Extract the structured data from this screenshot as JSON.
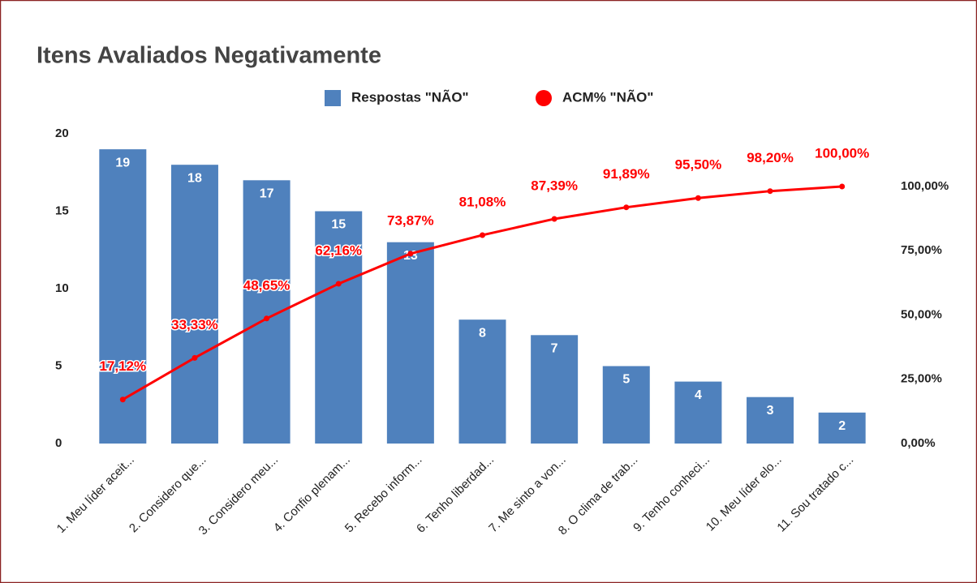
{
  "chart_data": {
    "type": "bar",
    "title": "Itens Avaliados Negativamente",
    "categories": [
      "1. Meu líder aceit...",
      "2. Considero que...",
      "3. Considero meu...",
      "4. Confio plenam...",
      "5. Recebo inform...",
      "6. Tenho liberdad...",
      "7. Me sinto a von...",
      "8. O clima de trab...",
      "9. Tenho conheci...",
      "10. Meu líder elo...",
      "11. Sou tratado c..."
    ],
    "series": [
      {
        "name": "Respostas \"NÃO\"",
        "color": "#4f81bd",
        "values": [
          19,
          18,
          17,
          15,
          13,
          8,
          7,
          5,
          4,
          3,
          2
        ]
      },
      {
        "name": "ACM% \"NÃO\"",
        "color": "#ff0000",
        "type": "line",
        "axis": "y2",
        "values": [
          17.12,
          33.33,
          48.65,
          62.16,
          73.87,
          81.08,
          87.39,
          91.89,
          95.5,
          98.2,
          100.0
        ],
        "value_labels": [
          "17,12%",
          "33,33%",
          "48,65%",
          "62,16%",
          "73,87%",
          "81,08%",
          "87,39%",
          "91,89%",
          "95,50%",
          "98,20%",
          "100,00%"
        ]
      }
    ],
    "ylim": [
      0,
      20
    ],
    "yticks": [
      0,
      5,
      10,
      15,
      20
    ],
    "y2lim": [
      0,
      120.5
    ],
    "y2ticks": [
      {
        "value": 0,
        "label": "0,00%"
      },
      {
        "value": 25,
        "label": "25,00%"
      },
      {
        "value": 50,
        "label": "50,00%"
      },
      {
        "value": 75,
        "label": "75,00%"
      },
      {
        "value": 100,
        "label": "100,00%"
      }
    ],
    "legend": "top"
  }
}
